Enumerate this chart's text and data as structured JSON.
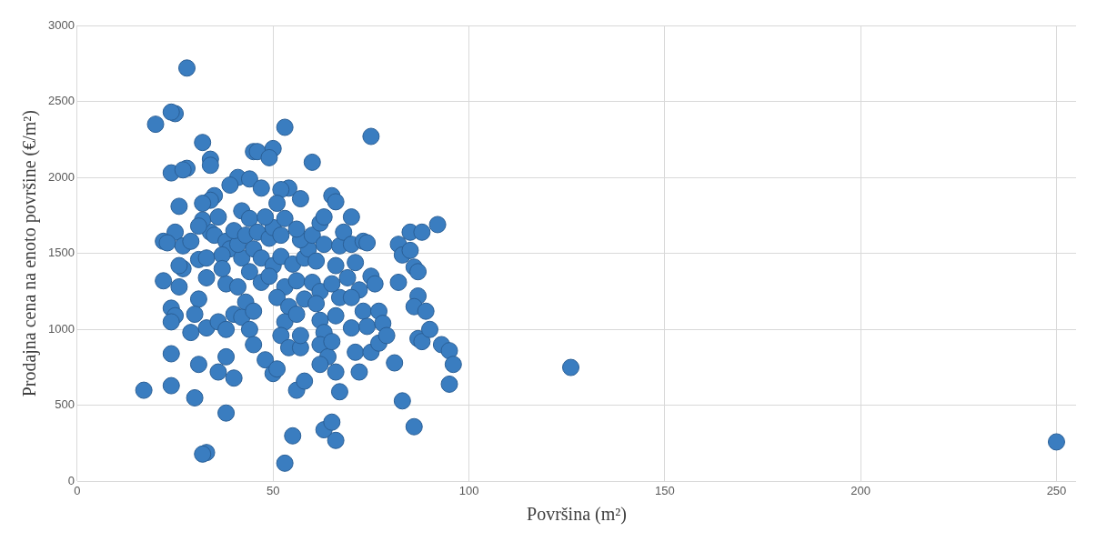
{
  "chart_data": {
    "type": "scatter",
    "xlabel": "Površina (m²)",
    "ylabel": "Prodajna cena na enoto površine (€/m²)",
    "xlim": [
      0,
      255
    ],
    "xticks": [
      0,
      50,
      100,
      150,
      200,
      250
    ],
    "ylim": [
      0,
      3000
    ],
    "yticks": [
      0,
      500,
      1000,
      1500,
      2000,
      2500,
      3000
    ],
    "grid": true,
    "legend": false,
    "marker": "circle",
    "series": [
      {
        "color": "#3a7dc0",
        "x": [
          28,
          20,
          25,
          24,
          32,
          53,
          75,
          34,
          34,
          45,
          46,
          50,
          49,
          60,
          24,
          28,
          27,
          41,
          44,
          54,
          39,
          47,
          52,
          57,
          65,
          66,
          35,
          34,
          32,
          26,
          22,
          25,
          23,
          27,
          29,
          22,
          26,
          27,
          26,
          24,
          25,
          24,
          24,
          24,
          17,
          30,
          33,
          32,
          38,
          31,
          29,
          31,
          30,
          33,
          36,
          36,
          38,
          40,
          38,
          40,
          38,
          33,
          31,
          33,
          34,
          32,
          31,
          36,
          35,
          38,
          39,
          37,
          37,
          41,
          42,
          41,
          40,
          42,
          44,
          43,
          46,
          45,
          44,
          43,
          42,
          44,
          45,
          48,
          50,
          51,
          45,
          47,
          47,
          49,
          50,
          48,
          51,
          53,
          52,
          50,
          49,
          52,
          53,
          51,
          54,
          53,
          52,
          54,
          57,
          56,
          58,
          55,
          53,
          57,
          56,
          58,
          56,
          55,
          58,
          59,
          57,
          60,
          56,
          62,
          63,
          63,
          61,
          60,
          62,
          61,
          62,
          63,
          62,
          64,
          62,
          63,
          65,
          66,
          67,
          66,
          65,
          66,
          67,
          65,
          66,
          67,
          68,
          70,
          70,
          71,
          69,
          72,
          70,
          73,
          70,
          71,
          72,
          74,
          75,
          73,
          74,
          75,
          76,
          77,
          78,
          77,
          79,
          81,
          82,
          82,
          83,
          83,
          86,
          85,
          85,
          86,
          87,
          87,
          86,
          87,
          88,
          89,
          88,
          90,
          92,
          93,
          95,
          96,
          95,
          126,
          250
        ],
        "values": [
          2720,
          2350,
          2420,
          2430,
          2230,
          2330,
          2270,
          2120,
          2080,
          2170,
          2170,
          2190,
          2130,
          2100,
          2030,
          2060,
          2050,
          2000,
          1990,
          1930,
          1950,
          1930,
          1920,
          1860,
          1880,
          1840,
          1880,
          1850,
          1830,
          1810,
          1580,
          1640,
          1570,
          1550,
          1580,
          1320,
          1280,
          1400,
          1420,
          1140,
          1090,
          1050,
          840,
          630,
          600,
          550,
          190,
          180,
          450,
          770,
          980,
          1200,
          1100,
          1010,
          1050,
          720,
          820,
          680,
          1000,
          1100,
          1300,
          1340,
          1460,
          1470,
          1640,
          1720,
          1680,
          1740,
          1620,
          1580,
          1530,
          1490,
          1400,
          1280,
          1470,
          1560,
          1650,
          1780,
          1730,
          1620,
          1640,
          1530,
          1380,
          1180,
          1080,
          1000,
          900,
          800,
          710,
          740,
          1120,
          1310,
          1470,
          1600,
          1670,
          1740,
          1830,
          1730,
          1620,
          1420,
          1350,
          1480,
          1280,
          1210,
          1150,
          1050,
          960,
          880,
          880,
          600,
          660,
          300,
          120,
          960,
          1100,
          1200,
          1320,
          1430,
          1470,
          1530,
          1590,
          1620,
          1660,
          1700,
          1740,
          1560,
          1450,
          1310,
          1250,
          1170,
          1060,
          980,
          900,
          820,
          770,
          340,
          390,
          270,
          590,
          720,
          920,
          1090,
          1210,
          1300,
          1420,
          1550,
          1640,
          1740,
          1560,
          1440,
          1340,
          1260,
          1210,
          1120,
          1010,
          850,
          720,
          1020,
          850,
          1580,
          1570,
          1350,
          1300,
          1120,
          1040,
          910,
          960,
          780,
          1310,
          1560,
          1490,
          530,
          360,
          1640,
          1520,
          1410,
          1380,
          1220,
          1150,
          940,
          920,
          1120,
          1640,
          1000,
          1690,
          900,
          860,
          770,
          640,
          750,
          260
        ]
      }
    ]
  }
}
